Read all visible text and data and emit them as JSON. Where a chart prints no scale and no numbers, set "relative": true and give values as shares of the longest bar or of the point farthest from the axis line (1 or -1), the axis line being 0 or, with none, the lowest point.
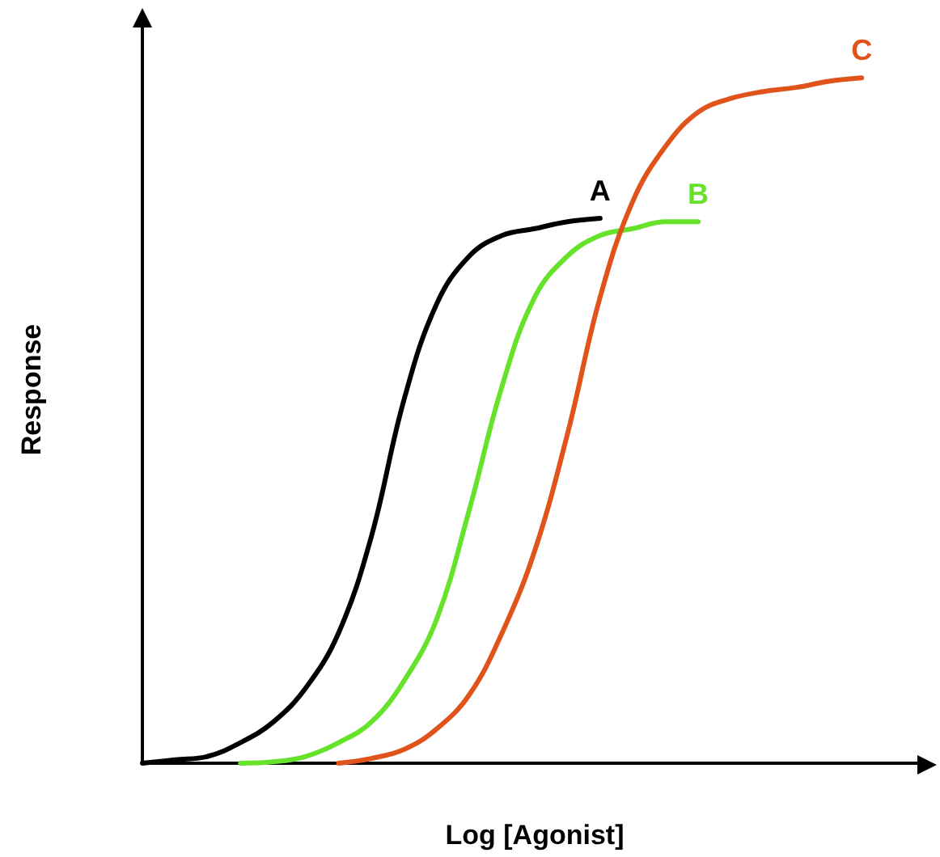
{
  "chart_data": {
    "type": "line",
    "relative": true,
    "xlabel": "Log [Agonist]",
    "ylabel": "Response",
    "grid": false,
    "legend": false,
    "marker": "none",
    "line_style": "solid",
    "categories": [
      null,
      null,
      null,
      null,
      null,
      null,
      null,
      null,
      null,
      null,
      null,
      null,
      null,
      null,
      null,
      null,
      null,
      null,
      null,
      null,
      null,
      null,
      null,
      null,
      null
    ],
    "series": [
      {
        "name": "A",
        "color": "#000000",
        "values": [
          0,
          0.005,
          0.01,
          0.03,
          0.06,
          0.11,
          0.19,
          0.33,
          0.53,
          0.67,
          0.74,
          0.77,
          0.78,
          0.79,
          0.795,
          null,
          null,
          null,
          null,
          null,
          null,
          null,
          null,
          null,
          null
        ]
      },
      {
        "name": "B",
        "color": "#66e22a",
        "values": [
          null,
          null,
          null,
          0,
          0.002,
          0.01,
          0.03,
          0.06,
          0.12,
          0.21,
          0.37,
          0.55,
          0.68,
          0.74,
          0.77,
          0.78,
          0.79,
          0.79,
          null,
          null,
          null,
          null,
          null,
          null,
          null
        ]
      },
      {
        "name": "C",
        "color": "#e0531a",
        "values": [
          null,
          null,
          null,
          null,
          null,
          null,
          0,
          0.007,
          0.02,
          0.05,
          0.1,
          0.19,
          0.31,
          0.48,
          0.68,
          0.82,
          0.9,
          0.95,
          0.97,
          0.98,
          0.986,
          0.995,
          1,
          null,
          null
        ]
      }
    ]
  }
}
